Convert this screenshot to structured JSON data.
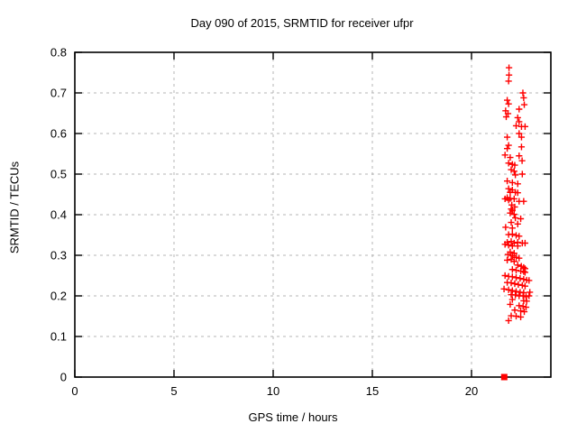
{
  "header": {
    "title": "Day 090 of 2015, SRMTID for receiver ufpr"
  },
  "colors": {
    "marker": "#ff0000",
    "grid": "#b4b4b4",
    "border": "#000000",
    "background": "#ffffff",
    "text": "#000000"
  },
  "chart_data": {
    "type": "scatter",
    "title": "Day 090 of 2015, SRMTID for receiver ufpr",
    "xlabel": "GPS time / hours",
    "ylabel": "SRMTID / TECUs",
    "xlim": [
      0,
      24
    ],
    "ylim": [
      0,
      0.8
    ],
    "xticks": [
      0,
      5,
      10,
      15,
      20
    ],
    "yticks": [
      0,
      0.1,
      0.2,
      0.3,
      0.4,
      0.5,
      0.6,
      0.7,
      0.8
    ],
    "grid": true,
    "legend_position": "none",
    "series": [
      {
        "name": "srmtid-points",
        "marker": "plus",
        "color": "#ff0000",
        "points": [
          [
            21.89,
            0.762
          ],
          [
            21.89,
            0.744
          ],
          [
            21.87,
            0.729
          ],
          [
            22.59,
            0.7
          ],
          [
            22.63,
            0.688
          ],
          [
            21.8,
            0.682
          ],
          [
            21.87,
            0.673
          ],
          [
            22.66,
            0.671
          ],
          [
            22.4,
            0.66
          ],
          [
            21.72,
            0.656
          ],
          [
            21.84,
            0.649
          ],
          [
            21.75,
            0.641
          ],
          [
            22.33,
            0.639
          ],
          [
            22.4,
            0.629
          ],
          [
            22.25,
            0.619
          ],
          [
            22.52,
            0.617
          ],
          [
            22.7,
            0.617
          ],
          [
            22.4,
            0.6
          ],
          [
            21.8,
            0.591
          ],
          [
            22.52,
            0.591
          ],
          [
            21.87,
            0.571
          ],
          [
            21.8,
            0.563
          ],
          [
            22.52,
            0.567
          ],
          [
            21.69,
            0.547
          ],
          [
            21.95,
            0.541
          ],
          [
            22.4,
            0.545
          ],
          [
            22.55,
            0.533
          ],
          [
            21.87,
            0.527
          ],
          [
            22.06,
            0.524
          ],
          [
            22.18,
            0.522
          ],
          [
            22.0,
            0.511
          ],
          [
            22.15,
            0.507
          ],
          [
            22.21,
            0.498
          ],
          [
            22.56,
            0.5
          ],
          [
            21.8,
            0.483
          ],
          [
            22.06,
            0.479
          ],
          [
            22.33,
            0.476
          ],
          [
            21.87,
            0.464
          ],
          [
            22.06,
            0.461
          ],
          [
            21.95,
            0.455
          ],
          [
            22.21,
            0.455
          ],
          [
            22.33,
            0.454
          ],
          [
            21.8,
            0.442
          ],
          [
            21.95,
            0.44
          ],
          [
            21.69,
            0.439
          ],
          [
            22.15,
            0.439
          ],
          [
            21.87,
            0.436
          ],
          [
            22.4,
            0.433
          ],
          [
            22.63,
            0.433
          ],
          [
            22.03,
            0.424
          ],
          [
            22.18,
            0.419
          ],
          [
            22.0,
            0.414
          ],
          [
            22.06,
            0.41
          ],
          [
            21.95,
            0.404
          ],
          [
            22.15,
            0.401
          ],
          [
            22.21,
            0.392
          ],
          [
            22.48,
            0.39
          ],
          [
            22.0,
            0.381
          ],
          [
            22.33,
            0.377
          ],
          [
            21.72,
            0.369
          ],
          [
            22.06,
            0.367
          ],
          [
            21.87,
            0.351
          ],
          [
            22.06,
            0.352
          ],
          [
            22.25,
            0.349
          ],
          [
            22.4,
            0.347
          ],
          [
            21.8,
            0.332
          ],
          [
            22.0,
            0.334
          ],
          [
            22.15,
            0.33
          ],
          [
            22.33,
            0.332
          ],
          [
            22.56,
            0.33
          ],
          [
            22.7,
            0.33
          ],
          [
            21.69,
            0.327
          ],
          [
            21.87,
            0.325
          ],
          [
            22.06,
            0.323
          ],
          [
            22.33,
            0.323
          ],
          [
            21.95,
            0.308
          ],
          [
            22.15,
            0.305
          ],
          [
            21.84,
            0.302
          ],
          [
            22.06,
            0.299
          ],
          [
            22.25,
            0.295
          ],
          [
            22.4,
            0.293
          ],
          [
            22.0,
            0.29
          ],
          [
            21.8,
            0.288
          ],
          [
            22.15,
            0.285
          ],
          [
            22.33,
            0.276
          ],
          [
            22.51,
            0.273
          ],
          [
            22.63,
            0.27
          ],
          [
            22.7,
            0.267
          ],
          [
            22.06,
            0.265
          ],
          [
            22.25,
            0.263
          ],
          [
            22.48,
            0.261
          ],
          [
            22.63,
            0.26
          ],
          [
            22.7,
            0.258
          ],
          [
            21.69,
            0.25
          ],
          [
            21.87,
            0.248
          ],
          [
            22.06,
            0.247
          ],
          [
            22.25,
            0.245
          ],
          [
            22.45,
            0.243
          ],
          [
            22.63,
            0.241
          ],
          [
            22.78,
            0.239
          ],
          [
            22.9,
            0.238
          ],
          [
            21.8,
            0.233
          ],
          [
            22.0,
            0.232
          ],
          [
            22.18,
            0.23
          ],
          [
            22.36,
            0.228
          ],
          [
            22.56,
            0.226
          ],
          [
            22.7,
            0.224
          ],
          [
            21.64,
            0.217
          ],
          [
            21.87,
            0.215
          ],
          [
            22.06,
            0.213
          ],
          [
            22.25,
            0.211
          ],
          [
            22.45,
            0.209
          ],
          [
            22.63,
            0.208
          ],
          [
            22.94,
            0.209
          ],
          [
            22.0,
            0.203
          ],
          [
            22.21,
            0.202
          ],
          [
            22.4,
            0.2
          ],
          [
            22.6,
            0.2
          ],
          [
            22.75,
            0.198
          ],
          [
            22.9,
            0.2
          ],
          [
            22.06,
            0.191
          ],
          [
            22.63,
            0.188
          ],
          [
            22.78,
            0.187
          ],
          [
            21.95,
            0.179
          ],
          [
            22.4,
            0.176
          ],
          [
            22.6,
            0.174
          ],
          [
            22.75,
            0.172
          ],
          [
            22.18,
            0.165
          ],
          [
            22.48,
            0.163
          ],
          [
            22.66,
            0.161
          ],
          [
            22.0,
            0.151
          ],
          [
            22.25,
            0.15
          ],
          [
            22.48,
            0.148
          ],
          [
            21.87,
            0.139
          ]
        ]
      },
      {
        "name": "axis-event-marker",
        "marker": "filled-square",
        "color": "#ff0000",
        "points": [
          [
            21.65,
            0.0
          ]
        ]
      }
    ]
  }
}
